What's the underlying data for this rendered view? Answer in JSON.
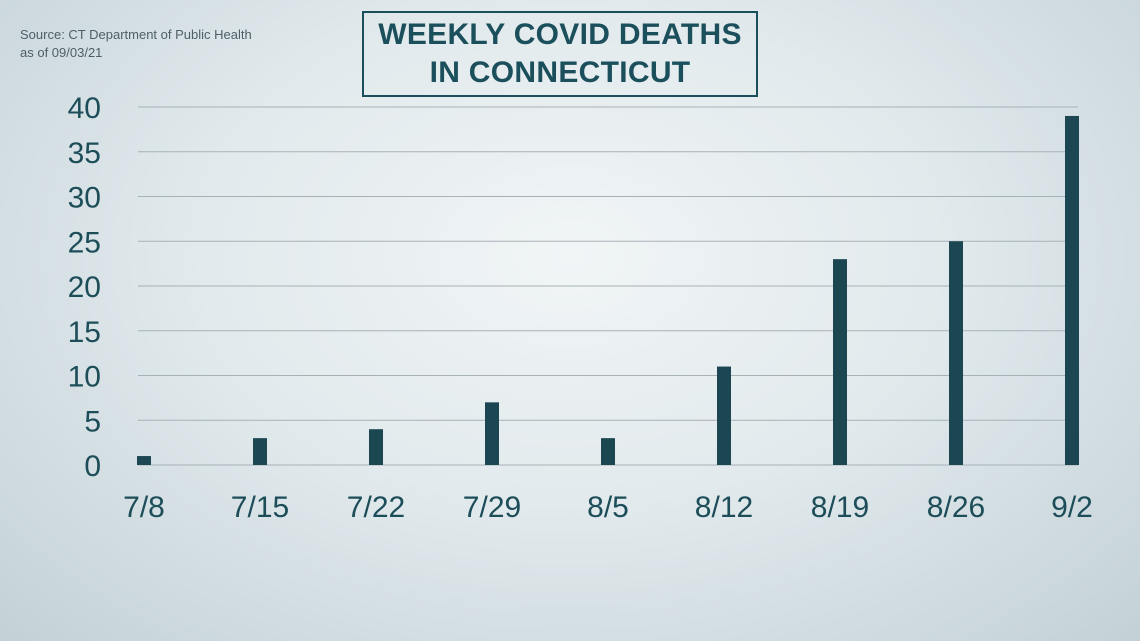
{
  "source": {
    "line1": "Source: CT Department of Public Health",
    "line2": "as of 09/03/21"
  },
  "colors": {
    "bar": "#1b4652",
    "grid": "#a7b2b7",
    "text": "#1c4d58"
  },
  "chart_data": {
    "type": "bar",
    "title_lines": [
      "WEEKLY COVID DEATHS",
      "IN CONNECTICUT"
    ],
    "categories": [
      "7/8",
      "7/15",
      "7/22",
      "7/29",
      "8/5",
      "8/12",
      "8/19",
      "8/26",
      "9/2"
    ],
    "values": [
      1,
      3,
      4,
      7,
      3,
      11,
      23,
      25,
      39
    ],
    "yticks": [
      0,
      5,
      10,
      15,
      20,
      25,
      30,
      35,
      40
    ],
    "ylim": [
      0,
      40
    ],
    "grid": true,
    "xlabel": "",
    "ylabel": ""
  }
}
